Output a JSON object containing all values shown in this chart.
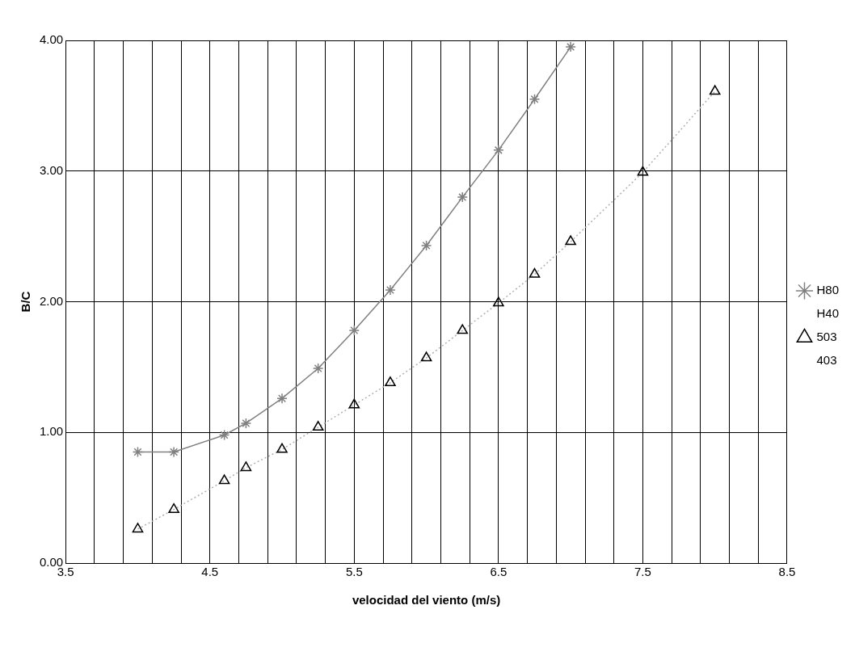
{
  "chart_data": {
    "type": "line",
    "xlabel": "velocidad del viento (m/s)",
    "ylabel": "B/C",
    "x": [
      4.0,
      4.25,
      4.6,
      4.75,
      5.0,
      5.25,
      5.5,
      5.75,
      6.0,
      6.25,
      6.5,
      6.75,
      7.0,
      7.5,
      8.0
    ],
    "series": [
      {
        "name": "H80",
        "color": "#808080",
        "marker": "cross",
        "line_style": "solid",
        "x": [
          4.0,
          4.25,
          4.6,
          4.75,
          5.0,
          5.25,
          5.5,
          5.75,
          6.0,
          6.25,
          6.5,
          6.75,
          7.0
        ],
        "values": [
          0.85,
          0.85,
          0.98,
          1.07,
          1.26,
          1.49,
          1.78,
          2.09,
          2.43,
          2.8,
          3.16,
          3.55,
          3.95
        ]
      },
      {
        "name": "H40",
        "marker": "none",
        "values": [
          null,
          null,
          null,
          null,
          null,
          null,
          null,
          null,
          null,
          null,
          null,
          null,
          null,
          null,
          null
        ]
      },
      {
        "name": "503",
        "type": "scatter",
        "color": "#000000",
        "marker": "triangle",
        "values": [
          0.26,
          0.41,
          0.63,
          0.73,
          0.87,
          1.04,
          1.21,
          1.38,
          1.57,
          1.78,
          1.99,
          2.21,
          2.46,
          2.99,
          3.61
        ]
      },
      {
        "name": "403",
        "color": "#b0b0b0",
        "marker": "none",
        "line_style": "dotted",
        "values": [
          0.26,
          0.41,
          0.63,
          0.73,
          0.87,
          1.04,
          1.21,
          1.38,
          1.57,
          1.78,
          1.99,
          2.21,
          2.46,
          2.99,
          3.61
        ]
      }
    ],
    "xlim": [
      3.5,
      8.5
    ],
    "xticks": [
      3.5,
      {
        "value": 3.7,
        "label": null
      },
      {
        "value": 3.9,
        "label": null
      },
      {
        "value": 4.1,
        "label": null
      },
      {
        "value": 4.3,
        "label": null
      },
      4.5,
      {
        "value": 4.7,
        "label": null
      },
      {
        "value": 4.9,
        "label": null
      },
      {
        "value": 5.1,
        "label": null
      },
      {
        "value": 5.3,
        "label": null
      },
      5.5,
      {
        "value": 5.7,
        "label": null
      },
      {
        "value": 5.9,
        "label": null
      },
      {
        "value": 6.1,
        "label": null
      },
      {
        "value": 6.3,
        "label": null
      },
      6.5,
      {
        "value": 6.7,
        "label": null
      },
      {
        "value": 6.9,
        "label": null
      },
      {
        "value": 7.1,
        "label": null
      },
      {
        "value": 7.3,
        "label": null
      },
      7.5,
      {
        "value": 7.7,
        "label": null
      },
      {
        "value": 7.9,
        "label": null
      },
      {
        "value": 8.1,
        "label": null
      },
      {
        "value": 8.3,
        "label": null
      },
      8.5
    ],
    "ylim": [
      0,
      4
    ],
    "yticks": [
      {
        "value": 0,
        "label": "0.00"
      },
      {
        "value": 1,
        "label": "1.00"
      },
      {
        "value": 2,
        "label": "2.00"
      },
      {
        "value": 3,
        "label": "3.00"
      },
      {
        "value": 4,
        "label": "4.00"
      }
    ],
    "grid": true,
    "legend": "right"
  }
}
